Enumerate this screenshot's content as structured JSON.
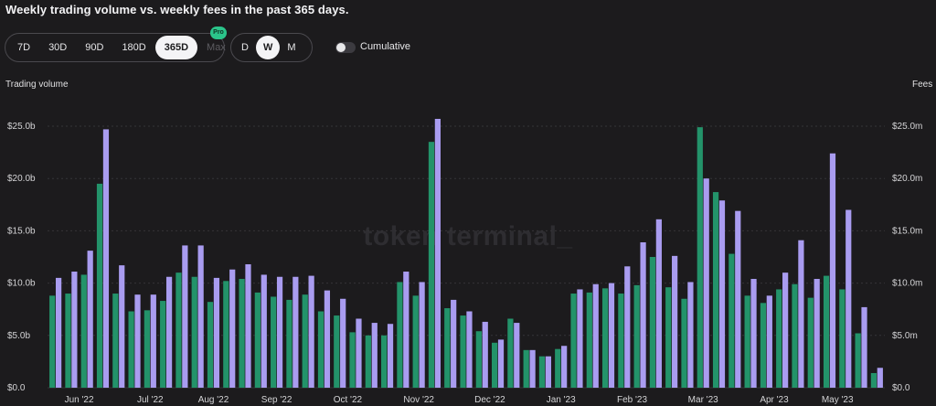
{
  "title": "Weekly trading volume vs. weekly fees in the past 365 days.",
  "range_options": [
    {
      "label": "7D",
      "active": false,
      "disabled": false
    },
    {
      "label": "30D",
      "active": false,
      "disabled": false
    },
    {
      "label": "90D",
      "active": false,
      "disabled": false
    },
    {
      "label": "180D",
      "active": false,
      "disabled": false
    },
    {
      "label": "365D",
      "active": true,
      "disabled": false
    },
    {
      "label": "Max",
      "active": false,
      "disabled": true
    }
  ],
  "pro_badge": "Pro",
  "granularity_options": [
    {
      "label": "D",
      "active": false
    },
    {
      "label": "W",
      "active": true
    },
    {
      "label": "M",
      "active": false
    }
  ],
  "cumulative_label": "Cumulative",
  "watermark": "token terminal_",
  "chart_data": {
    "type": "bar",
    "left_axis_title": "Trading volume",
    "right_axis_title": "Fees",
    "left_ticks": [
      "$0.0",
      "$5.0b",
      "$10.0b",
      "$15.0b",
      "$20.0b",
      "$25.0b"
    ],
    "right_ticks": [
      "$0.0",
      "$5.0m",
      "$10.0m",
      "$15.0m",
      "$20.0m",
      "$25.0m"
    ],
    "ylim": [
      0,
      25
    ],
    "month_labels": [
      "Jun '22",
      "Jul '22",
      "Aug '22",
      "Sep '22",
      "Oct '22",
      "Nov '22",
      "Dec '22",
      "Jan '23",
      "Feb '23",
      "Mar '23",
      "Apr '23",
      "May '23"
    ],
    "month_label_week_index": [
      1.5,
      6,
      10,
      14,
      18.5,
      23,
      27.5,
      32,
      36.5,
      41,
      45.5,
      49.5
    ],
    "series": [
      {
        "name": "Trading volume",
        "color": "#23936a",
        "values": [
          8.8,
          9.0,
          10.8,
          19.5,
          9.0,
          7.3,
          7.4,
          8.3,
          11.0,
          10.6,
          8.2,
          10.2,
          10.4,
          9.1,
          8.7,
          8.4,
          8.9,
          7.3,
          6.9,
          5.3,
          5.0,
          5.0,
          10.1,
          8.8,
          23.5,
          7.6,
          6.9,
          5.4,
          4.3,
          6.6,
          3.6,
          3.0,
          3.7,
          9.0,
          9.1,
          9.5,
          9.0,
          9.8,
          12.5,
          9.6,
          8.5,
          24.9,
          18.7,
          12.8,
          8.8,
          8.1,
          9.4,
          9.9,
          8.6,
          10.7,
          9.4,
          5.2,
          1.4
        ]
      },
      {
        "name": "Fees",
        "color": "#a99cf0",
        "values": [
          10.5,
          11.1,
          13.1,
          24.7,
          11.7,
          8.9,
          8.9,
          10.6,
          13.6,
          13.6,
          10.5,
          11.3,
          11.8,
          10.8,
          10.6,
          10.6,
          10.7,
          9.3,
          8.5,
          6.6,
          6.2,
          6.1,
          11.1,
          10.1,
          25.7,
          8.4,
          7.3,
          6.3,
          4.6,
          6.2,
          3.6,
          3.0,
          4.0,
          9.4,
          9.9,
          10.0,
          11.6,
          13.9,
          16.1,
          12.6,
          10.1,
          20.0,
          17.9,
          16.9,
          10.4,
          8.8,
          11.0,
          14.1,
          10.4,
          22.4,
          17.0,
          7.7,
          1.9
        ]
      }
    ],
    "legend": "none",
    "grid": true
  }
}
